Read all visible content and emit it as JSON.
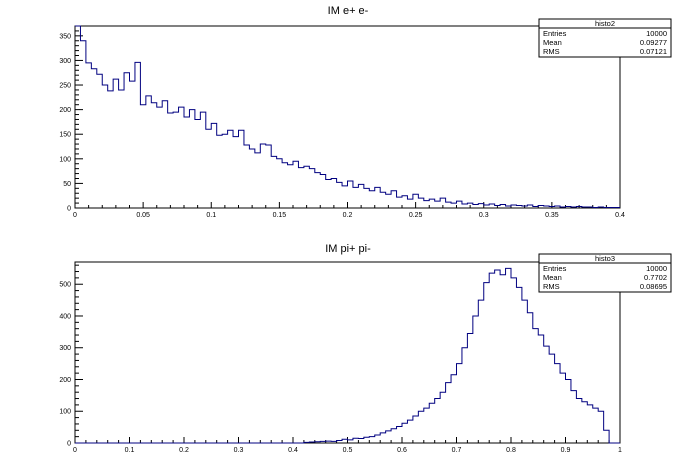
{
  "chart_data": [
    {
      "type": "histogram",
      "title": "IM e+ e-",
      "xlabel": "",
      "ylabel": "",
      "xlim": [
        0,
        0.4
      ],
      "ylim": [
        0,
        370
      ],
      "x_ticks": [
        "0",
        "0.05",
        "0.1",
        "0.15",
        "0.2",
        "0.25",
        "0.3",
        "0.35",
        "0.4"
      ],
      "x_tick_values": [
        0,
        0.05,
        0.1,
        0.15,
        0.2,
        0.25,
        0.3,
        0.35,
        0.4
      ],
      "y_ticks": [
        "0",
        "50",
        "100",
        "150",
        "200",
        "250",
        "300",
        "350"
      ],
      "y_tick_values": [
        0,
        50,
        100,
        150,
        200,
        250,
        300,
        350
      ],
      "bin_low": 0,
      "bin_width": 0.004,
      "line_color": "#000080",
      "values": [
        370,
        340,
        295,
        283,
        272,
        250,
        238,
        262,
        240,
        275,
        258,
        296,
        210,
        228,
        214,
        205,
        218,
        193,
        195,
        205,
        185,
        200,
        180,
        195,
        160,
        172,
        148,
        150,
        158,
        145,
        158,
        128,
        120,
        112,
        130,
        128,
        105,
        100,
        92,
        88,
        95,
        82,
        85,
        80,
        72,
        68,
        58,
        60,
        52,
        45,
        55,
        42,
        48,
        40,
        35,
        42,
        32,
        28,
        35,
        22,
        25,
        18,
        28,
        20,
        15,
        18,
        14,
        20,
        12,
        10,
        14,
        8,
        10,
        7,
        9,
        6,
        8,
        5,
        7,
        4,
        6,
        5,
        4,
        6,
        3,
        5,
        4,
        3,
        4,
        2,
        3,
        2,
        3,
        2,
        2,
        1,
        2,
        1,
        1,
        1
      ],
      "stats": {
        "name": "histo2",
        "rows": [
          {
            "label": "Entries",
            "value": "10000"
          },
          {
            "label": "Mean",
            "value": "0.09277"
          },
          {
            "label": "RMS",
            "value": "0.07121"
          }
        ]
      }
    },
    {
      "type": "histogram",
      "title": "IM pi+ pi-",
      "xlabel": "",
      "ylabel": "",
      "xlim": [
        0,
        1
      ],
      "ylim": [
        0,
        570
      ],
      "x_ticks": [
        "0",
        "0.1",
        "0.2",
        "0.3",
        "0.4",
        "0.5",
        "0.6",
        "0.7",
        "0.8",
        "0.9",
        "1"
      ],
      "x_tick_values": [
        0,
        0.1,
        0.2,
        0.3,
        0.4,
        0.5,
        0.6,
        0.7,
        0.8,
        0.9,
        1
      ],
      "y_ticks": [
        "0",
        "100",
        "200",
        "300",
        "400",
        "500"
      ],
      "y_tick_values": [
        0,
        100,
        200,
        300,
        400,
        500
      ],
      "bin_low": 0,
      "bin_width": 0.01,
      "line_color": "#000080",
      "values": [
        0,
        0,
        0,
        0,
        0,
        0,
        0,
        0,
        0,
        0,
        0,
        0,
        0,
        0,
        0,
        0,
        0,
        0,
        0,
        0,
        0,
        0,
        0,
        0,
        0,
        0,
        0,
        0,
        0,
        0,
        0,
        0,
        0,
        0,
        0,
        0,
        0,
        0,
        0,
        0,
        0,
        0,
        2,
        3,
        4,
        5,
        6,
        5,
        8,
        12,
        10,
        15,
        14,
        18,
        20,
        25,
        32,
        38,
        45,
        52,
        62,
        72,
        85,
        100,
        110,
        125,
        140,
        160,
        190,
        215,
        250,
        300,
        345,
        400,
        450,
        505,
        535,
        545,
        530,
        550,
        520,
        490,
        450,
        410,
        360,
        340,
        305,
        280,
        250,
        220,
        200,
        165,
        140,
        130,
        120,
        110,
        100,
        40,
        0,
        0
      ],
      "stats": {
        "name": "histo3",
        "rows": [
          {
            "label": "Entries",
            "value": "10000"
          },
          {
            "label": "Mean",
            "value": "0.7702"
          },
          {
            "label": "RMS",
            "value": "0.08695"
          }
        ]
      }
    }
  ]
}
